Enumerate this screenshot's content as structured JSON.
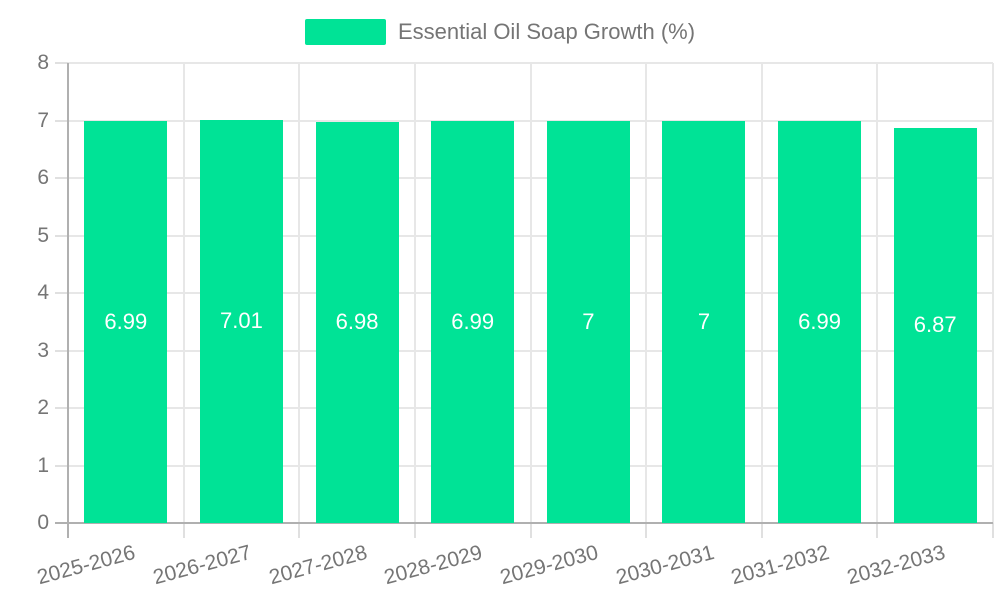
{
  "chart_data": {
    "type": "bar",
    "title": "Essential Oil Soap Growth (%)",
    "legend": {
      "entries": [
        "Essential Oil Soap Growth (%)"
      ],
      "position": "top"
    },
    "categories": [
      "2025-2026",
      "2026-2027",
      "2027-2028",
      "2028-2029",
      "2029-2030",
      "2030-2031",
      "2031-2032",
      "2032-2033"
    ],
    "series": [
      {
        "name": "Essential Oil Soap Growth (%)",
        "values": [
          6.99,
          7.01,
          6.98,
          6.99,
          7,
          7,
          6.99,
          6.87
        ],
        "value_labels": [
          "6.99",
          "7.01",
          "6.98",
          "6.99",
          "7",
          "7",
          "6.99",
          "6.87"
        ]
      }
    ],
    "xlabel": "",
    "ylabel": "",
    "ylim": [
      0,
      8
    ],
    "yticks": [
      0,
      1,
      2,
      3,
      4,
      5,
      6,
      7,
      8
    ],
    "grid": true,
    "colors": {
      "bar": "#00E396",
      "grid": "#e7e7e7",
      "tick": "#e0e0e0",
      "axis": "#b0b0b0",
      "text": "#757575",
      "value_label": "#ffffff",
      "background": "#ffffff"
    }
  }
}
